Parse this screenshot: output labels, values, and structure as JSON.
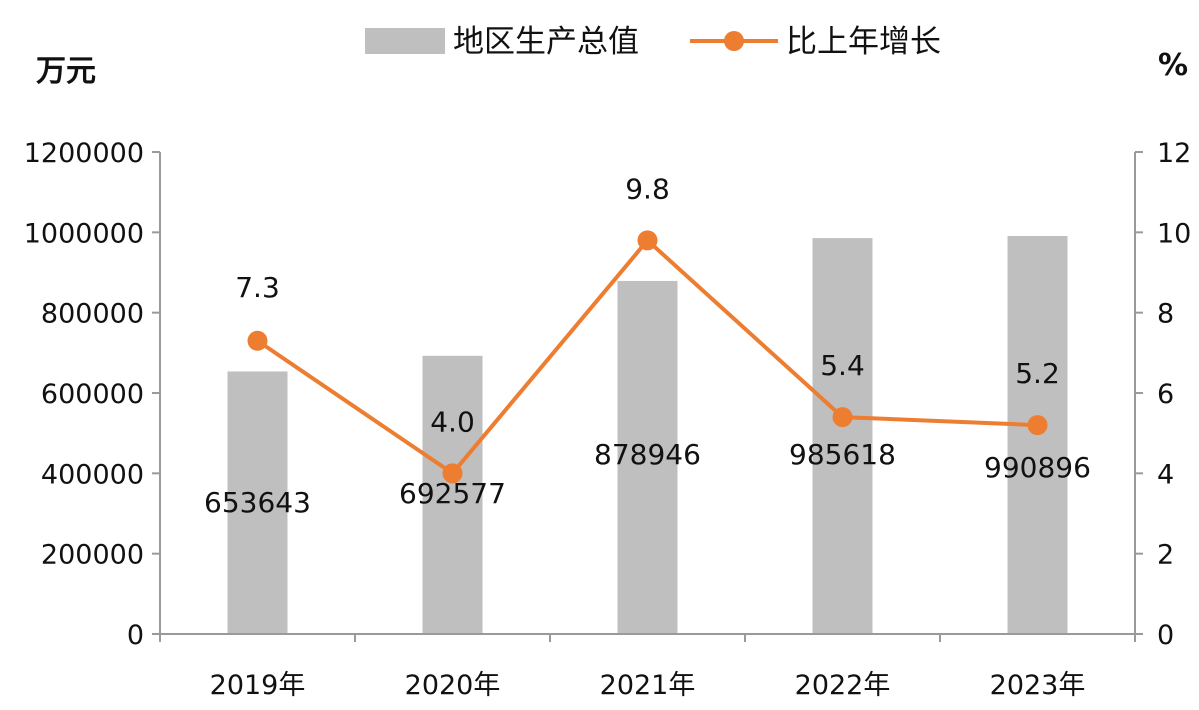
{
  "chart_data": {
    "type": "bar",
    "categories": [
      "2019年",
      "2020年",
      "2021年",
      "2022年",
      "2023年"
    ],
    "series": [
      {
        "name": "地区生产总值",
        "type": "bar",
        "axis": "left",
        "color": "#BFBFBF",
        "values": [
          653643,
          692577,
          878946,
          985618,
          990896
        ],
        "labels": [
          "653643",
          "692577",
          "878946",
          "985618",
          "990896"
        ]
      },
      {
        "name": "比上年增长",
        "type": "line",
        "axis": "right",
        "color": "#ED7D31",
        "values": [
          7.3,
          4.0,
          9.8,
          5.4,
          5.2
        ],
        "labels": [
          "7.3",
          "4.0",
          "9.8",
          "5.4",
          "5.2"
        ]
      }
    ],
    "y_left": {
      "unit": "万元",
      "range": [
        0,
        1200000
      ],
      "ticks": [
        "0",
        "200000",
        "400000",
        "600000",
        "800000",
        "1000000",
        "1200000"
      ]
    },
    "y_right": {
      "unit": "%",
      "range": [
        0,
        12
      ],
      "ticks": [
        "0",
        "2",
        "4",
        "6",
        "8",
        "10",
        "12"
      ]
    },
    "legend_position": "top",
    "grid": false
  }
}
